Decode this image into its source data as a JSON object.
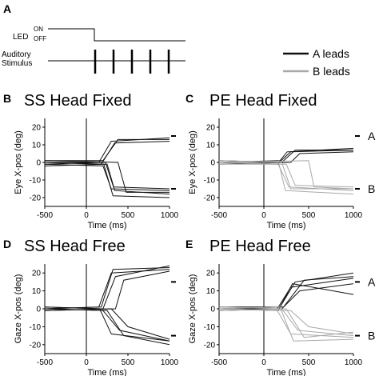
{
  "panel_a": {
    "letter": "A",
    "led_label": "LED",
    "on_label": "ON",
    "off_label": "OFF",
    "aud_label_1": "Auditory",
    "aud_label_2": "Stimulus"
  },
  "legend": {
    "a_leads": "A leads",
    "b_leads": "B leads",
    "a_color": "#111111",
    "b_color": "#a8a8a8"
  },
  "side_labels": {
    "a": "A",
    "b": "B"
  },
  "colors": {
    "a_trace": "#111111",
    "b_trace": "#a8a8a8",
    "axis": "#000000"
  },
  "chart_data": [
    {
      "letter": "B",
      "title": "SS Head Fixed",
      "type": "line",
      "xlabel": "Time (ms)",
      "ylabel": "Eye X-pos (deg)",
      "xlim": [
        -500,
        1000
      ],
      "ylim": [
        -25,
        25
      ],
      "xticks": [
        -500,
        0,
        500,
        1000
      ],
      "yticks": [
        -20,
        -10,
        0,
        10,
        20
      ],
      "series": [
        {
          "group": "A",
          "x": [
            -500,
            150,
            300,
            1000
          ],
          "y": [
            -1,
            0,
            12,
            14
          ]
        },
        {
          "group": "A",
          "x": [
            -500,
            200,
            380,
            1000
          ],
          "y": [
            1,
            1,
            13,
            13
          ]
        },
        {
          "group": "A",
          "x": [
            -500,
            180,
            340,
            1000
          ],
          "y": [
            0,
            -1,
            11,
            12
          ]
        },
        {
          "group": "A",
          "x": [
            -500,
            200,
            300,
            1000
          ],
          "y": [
            -1,
            -2,
            -15,
            -16
          ]
        },
        {
          "group": "A",
          "x": [
            -500,
            230,
            340,
            1000
          ],
          "y": [
            0,
            0,
            -16,
            -18
          ]
        },
        {
          "group": "A",
          "x": [
            -500,
            380,
            480,
            1000
          ],
          "y": [
            1,
            0,
            -17,
            -17
          ]
        },
        {
          "group": "A",
          "x": [
            -500,
            210,
            320,
            1000
          ],
          "y": [
            0,
            -1,
            -19,
            -20
          ]
        },
        {
          "group": "A",
          "x": [
            -500,
            250,
            330,
            1000
          ],
          "y": [
            -2,
            -1,
            -14,
            -15
          ]
        }
      ]
    },
    {
      "letter": "C",
      "title": "PE Head Fixed",
      "type": "line",
      "xlabel": "Time (ms)",
      "ylabel": "Eye X-pos (deg)",
      "xlim": [
        -500,
        1000
      ],
      "ylim": [
        -25,
        25
      ],
      "xticks": [
        -500,
        0,
        500,
        1000
      ],
      "yticks": [
        -20,
        -10,
        0,
        10,
        20
      ],
      "series": [
        {
          "group": "A",
          "x": [
            -500,
            150,
            300,
            1000
          ],
          "y": [
            0,
            -1,
            6,
            7
          ]
        },
        {
          "group": "A",
          "x": [
            -500,
            200,
            350,
            1000
          ],
          "y": [
            1,
            0,
            7,
            7
          ]
        },
        {
          "group": "A",
          "x": [
            -500,
            300,
            400,
            1000
          ],
          "y": [
            -1,
            0,
            5,
            6
          ]
        },
        {
          "group": "A",
          "x": [
            -500,
            180,
            260,
            1000
          ],
          "y": [
            0,
            1,
            6,
            8
          ]
        },
        {
          "group": "B",
          "x": [
            -500,
            150,
            280,
            1000
          ],
          "y": [
            0,
            0,
            -14,
            -16
          ]
        },
        {
          "group": "B",
          "x": [
            -500,
            200,
            300,
            1000
          ],
          "y": [
            1,
            0,
            -15,
            -15
          ]
        },
        {
          "group": "B",
          "x": [
            -500,
            500,
            560,
            1000
          ],
          "y": [
            0,
            1,
            -14,
            -15
          ]
        },
        {
          "group": "B",
          "x": [
            -500,
            250,
            350,
            1000
          ],
          "y": [
            -1,
            -1,
            -13,
            -14
          ]
        },
        {
          "group": "B",
          "x": [
            -500,
            170,
            240,
            1000
          ],
          "y": [
            0,
            -1,
            -16,
            -18
          ]
        }
      ]
    },
    {
      "letter": "D",
      "title": "SS Head Free",
      "type": "line",
      "xlabel": "Time (ms)",
      "ylabel": "Gaze X-pos (deg)",
      "xlim": [
        -500,
        1000
      ],
      "ylim": [
        -25,
        25
      ],
      "xticks": [
        -500,
        0,
        500,
        1000
      ],
      "yticks": [
        -20,
        -10,
        0,
        10,
        20
      ],
      "series": [
        {
          "group": "A",
          "x": [
            -500,
            150,
            300,
            1000
          ],
          "y": [
            0,
            1,
            20,
            22
          ]
        },
        {
          "group": "A",
          "x": [
            -500,
            200,
            350,
            1000
          ],
          "y": [
            1,
            0,
            18,
            24
          ]
        },
        {
          "group": "A",
          "x": [
            -500,
            350,
            450,
            1000
          ],
          "y": [
            -1,
            0,
            16,
            21
          ]
        },
        {
          "group": "A",
          "x": [
            -500,
            180,
            320,
            1000
          ],
          "y": [
            0,
            1,
            22,
            23
          ]
        },
        {
          "group": "A",
          "x": [
            -500,
            200,
            400,
            1000
          ],
          "y": [
            0,
            -1,
            -12,
            -18
          ]
        },
        {
          "group": "A",
          "x": [
            -500,
            160,
            300,
            1000
          ],
          "y": [
            1,
            0,
            -14,
            -18
          ]
        },
        {
          "group": "A",
          "x": [
            -500,
            250,
            450,
            1000
          ],
          "y": [
            0,
            -1,
            -15,
            -20
          ]
        },
        {
          "group": "A",
          "x": [
            -500,
            300,
            500,
            1000
          ],
          "y": [
            -1,
            0,
            -10,
            -17
          ]
        }
      ]
    },
    {
      "letter": "E",
      "title": "PE Head Free",
      "type": "line",
      "xlabel": "Time (ms)",
      "ylabel": "Gaze X-pos (deg)",
      "xlim": [
        -500,
        1000
      ],
      "ylim": [
        -25,
        25
      ],
      "xticks": [
        -500,
        0,
        500,
        1000
      ],
      "yticks": [
        -20,
        -10,
        0,
        10,
        20
      ],
      "series": [
        {
          "group": "A",
          "x": [
            -500,
            150,
            300,
            1000
          ],
          "y": [
            0,
            0,
            12,
            17
          ]
        },
        {
          "group": "A",
          "x": [
            -500,
            180,
            350,
            1000
          ],
          "y": [
            1,
            1,
            15,
            20
          ]
        },
        {
          "group": "A",
          "x": [
            -500,
            200,
            400,
            1000
          ],
          "y": [
            -1,
            0,
            10,
            14
          ]
        },
        {
          "group": "A",
          "x": [
            -500,
            160,
            320,
            1000
          ],
          "y": [
            0,
            -1,
            14,
            8
          ]
        },
        {
          "group": "A",
          "x": [
            -500,
            220,
            450,
            1000
          ],
          "y": [
            0,
            1,
            16,
            18
          ]
        },
        {
          "group": "B",
          "x": [
            -500,
            150,
            300,
            1000
          ],
          "y": [
            0,
            -1,
            -14,
            -16
          ]
        },
        {
          "group": "B",
          "x": [
            -500,
            200,
            380,
            1000
          ],
          "y": [
            1,
            0,
            -12,
            -15
          ]
        },
        {
          "group": "B",
          "x": [
            -500,
            250,
            450,
            1000
          ],
          "y": [
            -1,
            0,
            -16,
            -13
          ]
        },
        {
          "group": "B",
          "x": [
            -500,
            180,
            330,
            1000
          ],
          "y": [
            0,
            1,
            -18,
            -17
          ]
        },
        {
          "group": "B",
          "x": [
            -500,
            300,
            500,
            1000
          ],
          "y": [
            0,
            -1,
            -10,
            -14
          ]
        }
      ]
    }
  ]
}
